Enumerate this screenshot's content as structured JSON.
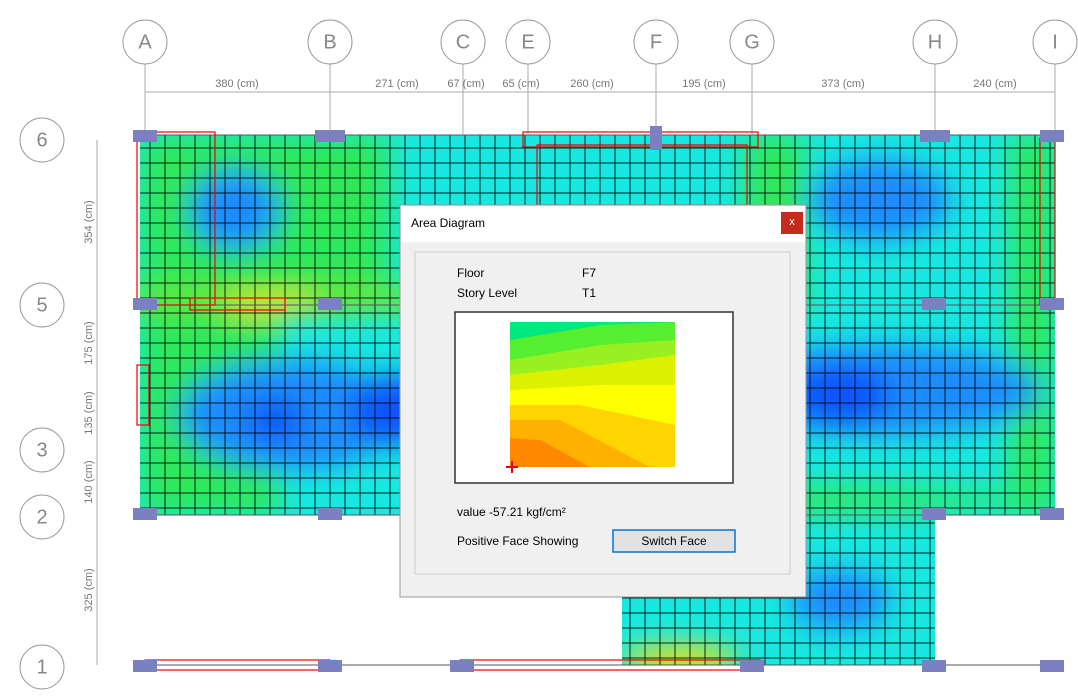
{
  "grid": {
    "columns": [
      "A",
      "B",
      "C",
      "E",
      "F",
      "G",
      "H",
      "I"
    ],
    "rows": [
      "6",
      "5",
      "3",
      "2",
      "1"
    ],
    "x_dimensions": [
      "380 (cm)",
      "271 (cm)",
      "67 (cm)",
      "65 (cm)",
      "260 (cm)",
      "195 (cm)",
      "373 (cm)",
      "240 (cm)"
    ],
    "y_dimensions": [
      "354 (cm)",
      "175 (cm)",
      "135 (cm)",
      "140 (cm)",
      "325 (cm)"
    ]
  },
  "dialog": {
    "title": "Area Diagram",
    "close": "x",
    "fields": [
      {
        "label": "Floor",
        "value": "F7"
      },
      {
        "label": "Story Level",
        "value": "T1"
      }
    ],
    "value_text": "value -57.21 kgf/cm²",
    "face_text": "Positive Face Showing",
    "button": "Switch Face"
  }
}
